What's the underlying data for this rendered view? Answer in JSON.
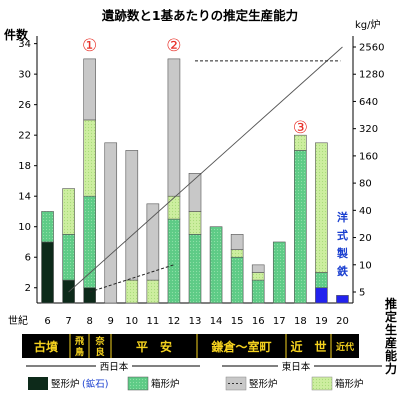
{
  "chart_data": {
    "type": "bar",
    "title": "遺跡数と1基あたりの推定生産能力",
    "ylabel_left": "件数",
    "ylabel_right_unit": "kg/炉",
    "ylabel_right": "推定生産能力",
    "xlabel": "世紀",
    "categories": [
      "6",
      "7",
      "8",
      "9",
      "10",
      "11",
      "12",
      "13",
      "14",
      "15",
      "16",
      "17",
      "18",
      "19",
      "20"
    ],
    "left_ticks": [
      "2",
      "6",
      "10",
      "14",
      "18",
      "22",
      "26",
      "30",
      "34"
    ],
    "right_ticks": [
      "5",
      "10",
      "20",
      "40",
      "80",
      "160",
      "320",
      "640",
      "1280",
      "2560"
    ],
    "series": [
      {
        "name": "竪形炉",
        "note": "(鉱石)",
        "region": "西日本",
        "values": [
          8,
          3,
          2,
          0,
          0,
          0,
          0,
          0,
          0,
          0,
          0,
          0,
          0,
          0,
          0
        ]
      },
      {
        "name": "箱形炉",
        "region": "西日本",
        "values": [
          4,
          6,
          12,
          0,
          0,
          0,
          11,
          9,
          10,
          6,
          3,
          8,
          20,
          2,
          0
        ]
      },
      {
        "name": "竪形炉",
        "region": "東日本",
        "values": [
          0,
          0,
          8,
          21,
          17,
          10,
          18,
          5,
          0,
          2,
          1,
          0,
          0,
          0,
          0
        ]
      },
      {
        "name": "箱形炉",
        "region": "東日本",
        "values": [
          0,
          6,
          10,
          0,
          3,
          3,
          3,
          3,
          0,
          1,
          1,
          0,
          2,
          17,
          0
        ]
      },
      {
        "name": "洋式製鉄",
        "values": [
          0,
          0,
          0,
          0,
          0,
          0,
          0,
          0,
          0,
          0,
          0,
          0,
          0,
          2,
          1
        ]
      }
    ],
    "annotations": [
      {
        "label": "①",
        "century": "8"
      },
      {
        "label": "②",
        "century": "12"
      },
      {
        "label": "③",
        "century": "18"
      },
      {
        "label": "洋式製鉄",
        "century": "20"
      }
    ],
    "capacity_line": {
      "from_century": "7",
      "to_century": "20",
      "from_kg": 5,
      "to_kg": 2560
    },
    "dashed_lines": [
      {
        "century_from": "8",
        "century_to": "12",
        "kg_from": 5,
        "kg_to": 10
      },
      {
        "century_from": "13",
        "century_to": "19.9",
        "kg_from": 1800,
        "kg_to": 1800
      }
    ],
    "periods": [
      {
        "label": "古墳",
        "from": "6",
        "to": "7"
      },
      {
        "label": "飛鳥",
        "from": "7",
        "to": "7"
      },
      {
        "label": "奈良",
        "from": "8",
        "to": "8"
      },
      {
        "label": "平　安",
        "from": "9",
        "to": "12"
      },
      {
        "label": "鎌倉～室町",
        "from": "13",
        "to": "16"
      },
      {
        "label": "近　世",
        "from": "17",
        "to": "19"
      },
      {
        "label": "近代",
        "from": "20",
        "to": "20"
      }
    ],
    "legend": {
      "west_label": "西日本",
      "east_label": "東日本",
      "items": [
        {
          "label": "竪形炉",
          "extra": "(鉱石)"
        },
        {
          "label": "箱形炉"
        },
        {
          "label": "竪形炉"
        },
        {
          "label": "箱形炉"
        }
      ]
    },
    "yoshiki_text": [
      "洋",
      "式",
      "製",
      "鉄"
    ]
  },
  "colors": {
    "west_vertical": "#0d2a1a",
    "west_box": "#5ecb86",
    "east_vertical": "#c8c8c8",
    "east_box": "#c9ee9a",
    "western_iron": "#2222ee",
    "era_bg": "#000000",
    "era_text": "#f5d21e",
    "circle_text": "#e8322a"
  }
}
